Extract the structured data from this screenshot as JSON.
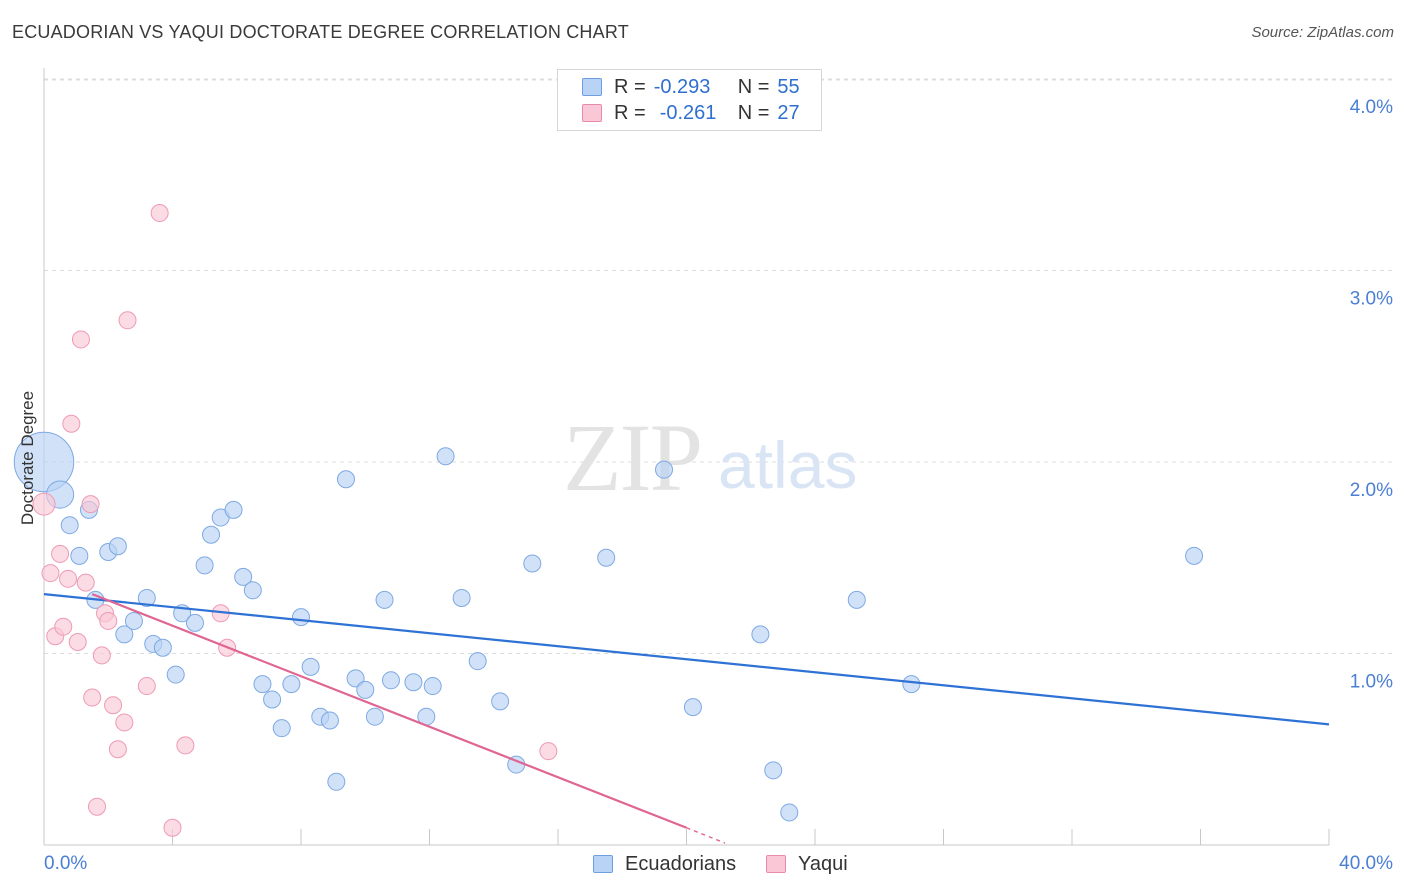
{
  "title": "ECUADORIAN VS YAQUI DOCTORATE DEGREE CORRELATION CHART",
  "source": "Source: ZipAtlas.com",
  "watermark": {
    "zip": "ZIP",
    "atlas": "atlas"
  },
  "legend": {
    "series1": {
      "r_label": "R =",
      "r_value": "-0.293",
      "n_label": "N =",
      "n_value": "55"
    },
    "series2": {
      "r_label": "R =",
      "r_value": "-0.261",
      "n_label": "N =",
      "n_value": "27"
    }
  },
  "bottom_legend": {
    "series1": "Ecuadorians",
    "series2": "Yaqui"
  },
  "colors": {
    "blue_fill": "#b8d3f5",
    "blue_stroke": "#7ea9e3",
    "blue_line": "#2f72d6",
    "pink_fill": "#f9c7d6",
    "pink_stroke": "#ee9ab6",
    "pink_line": "#e06592",
    "tick_label": "#4a7fd4",
    "grid": "#dddddd"
  },
  "chart_data": {
    "type": "scatter",
    "title": "ECUADORIAN VS YAQUI DOCTORATE DEGREE CORRELATION CHART",
    "xlabel": "",
    "ylabel": "Doctorate Degree",
    "xlim": [
      0,
      40
    ],
    "ylim": [
      0,
      4.1
    ],
    "x_tick_labels": [
      "0.0%",
      "40.0%"
    ],
    "y_ticks": [
      1,
      2,
      3,
      4
    ],
    "y_tick_labels": [
      "1.0%",
      "2.0%",
      "3.0%",
      "4.0%"
    ],
    "grid": true,
    "legend_position": "top-center",
    "series": [
      {
        "name": "Ecuadorians",
        "r": -0.293,
        "n": 55,
        "trend": {
          "x": [
            0,
            40
          ],
          "y": [
            1.31,
            0.63
          ]
        },
        "points": [
          {
            "x": 0.0,
            "y": 2.0,
            "size": 3.5
          },
          {
            "x": 0.5,
            "y": 1.83,
            "size": 1.6
          },
          {
            "x": 0.8,
            "y": 1.67,
            "size": 1
          },
          {
            "x": 1.1,
            "y": 1.51,
            "size": 1
          },
          {
            "x": 1.4,
            "y": 1.75,
            "size": 1
          },
          {
            "x": 1.6,
            "y": 1.28,
            "size": 1
          },
          {
            "x": 2.0,
            "y": 1.53,
            "size": 1
          },
          {
            "x": 2.3,
            "y": 1.56,
            "size": 1
          },
          {
            "x": 2.5,
            "y": 1.1,
            "size": 1
          },
          {
            "x": 2.8,
            "y": 1.17,
            "size": 1
          },
          {
            "x": 3.2,
            "y": 1.29,
            "size": 1
          },
          {
            "x": 3.4,
            "y": 1.05,
            "size": 1
          },
          {
            "x": 3.7,
            "y": 1.03,
            "size": 1
          },
          {
            "x": 4.1,
            "y": 0.89,
            "size": 1
          },
          {
            "x": 4.3,
            "y": 1.21,
            "size": 1
          },
          {
            "x": 4.7,
            "y": 1.16,
            "size": 1
          },
          {
            "x": 5.0,
            "y": 1.46,
            "size": 1
          },
          {
            "x": 5.2,
            "y": 1.62,
            "size": 1
          },
          {
            "x": 5.5,
            "y": 1.71,
            "size": 1
          },
          {
            "x": 5.9,
            "y": 1.75,
            "size": 1
          },
          {
            "x": 6.2,
            "y": 1.4,
            "size": 1
          },
          {
            "x": 6.5,
            "y": 1.33,
            "size": 1
          },
          {
            "x": 6.8,
            "y": 0.84,
            "size": 1
          },
          {
            "x": 7.1,
            "y": 0.76,
            "size": 1
          },
          {
            "x": 7.4,
            "y": 0.61,
            "size": 1
          },
          {
            "x": 7.7,
            "y": 0.84,
            "size": 1
          },
          {
            "x": 8.0,
            "y": 1.19,
            "size": 1
          },
          {
            "x": 8.3,
            "y": 0.93,
            "size": 1
          },
          {
            "x": 8.6,
            "y": 0.67,
            "size": 1
          },
          {
            "x": 8.9,
            "y": 0.65,
            "size": 1
          },
          {
            "x": 9.1,
            "y": 0.33,
            "size": 1
          },
          {
            "x": 9.4,
            "y": 1.91,
            "size": 1
          },
          {
            "x": 9.7,
            "y": 0.87,
            "size": 1
          },
          {
            "x": 10.0,
            "y": 0.81,
            "size": 1
          },
          {
            "x": 10.3,
            "y": 0.67,
            "size": 1
          },
          {
            "x": 10.6,
            "y": 1.28,
            "size": 1
          },
          {
            "x": 10.8,
            "y": 0.86,
            "size": 1
          },
          {
            "x": 11.5,
            "y": 0.85,
            "size": 1
          },
          {
            "x": 11.9,
            "y": 0.67,
            "size": 1
          },
          {
            "x": 12.1,
            "y": 0.83,
            "size": 1
          },
          {
            "x": 12.5,
            "y": 2.03,
            "size": 1
          },
          {
            "x": 13.0,
            "y": 1.29,
            "size": 1
          },
          {
            "x": 13.5,
            "y": 0.96,
            "size": 1
          },
          {
            "x": 14.2,
            "y": 0.75,
            "size": 1
          },
          {
            "x": 14.7,
            "y": 0.42,
            "size": 1
          },
          {
            "x": 15.2,
            "y": 1.47,
            "size": 1
          },
          {
            "x": 17.5,
            "y": 1.5,
            "size": 1
          },
          {
            "x": 19.3,
            "y": 1.96,
            "size": 1
          },
          {
            "x": 20.2,
            "y": 0.72,
            "size": 1
          },
          {
            "x": 22.3,
            "y": 1.1,
            "size": 1
          },
          {
            "x": 22.7,
            "y": 0.39,
            "size": 1
          },
          {
            "x": 23.2,
            "y": 0.17,
            "size": 1
          },
          {
            "x": 25.3,
            "y": 1.28,
            "size": 1
          },
          {
            "x": 27.0,
            "y": 0.84,
            "size": 1
          },
          {
            "x": 35.8,
            "y": 1.51,
            "size": 1
          }
        ]
      },
      {
        "name": "Yaqui",
        "r": -0.261,
        "n": 27,
        "trend": {
          "x": [
            1.5,
            20.0
          ],
          "y": [
            1.31,
            0.09
          ]
        },
        "trend_dashed_extension": {
          "x": [
            20.0,
            21.2
          ],
          "y": [
            0.09,
            0.01
          ]
        },
        "points": [
          {
            "x": 0.0,
            "y": 1.78,
            "size": 1.3
          },
          {
            "x": 0.2,
            "y": 1.42,
            "size": 1
          },
          {
            "x": 0.35,
            "y": 1.09,
            "size": 1
          },
          {
            "x": 0.5,
            "y": 1.52,
            "size": 1
          },
          {
            "x": 0.6,
            "y": 1.14,
            "size": 1
          },
          {
            "x": 0.75,
            "y": 1.39,
            "size": 1
          },
          {
            "x": 0.85,
            "y": 2.2,
            "size": 1
          },
          {
            "x": 1.05,
            "y": 1.06,
            "size": 1
          },
          {
            "x": 1.15,
            "y": 2.64,
            "size": 1
          },
          {
            "x": 1.3,
            "y": 1.37,
            "size": 1
          },
          {
            "x": 1.45,
            "y": 1.78,
            "size": 1
          },
          {
            "x": 1.5,
            "y": 0.77,
            "size": 1
          },
          {
            "x": 1.65,
            "y": 0.2,
            "size": 1
          },
          {
            "x": 1.8,
            "y": 0.99,
            "size": 1
          },
          {
            "x": 1.9,
            "y": 1.21,
            "size": 1
          },
          {
            "x": 2.0,
            "y": 1.17,
            "size": 1
          },
          {
            "x": 2.15,
            "y": 0.73,
            "size": 1
          },
          {
            "x": 2.3,
            "y": 0.5,
            "size": 1
          },
          {
            "x": 2.5,
            "y": 0.64,
            "size": 1
          },
          {
            "x": 2.6,
            "y": 2.74,
            "size": 1
          },
          {
            "x": 3.2,
            "y": 0.83,
            "size": 1
          },
          {
            "x": 3.6,
            "y": 3.3,
            "size": 1
          },
          {
            "x": 4.0,
            "y": 0.09,
            "size": 1
          },
          {
            "x": 4.4,
            "y": 0.52,
            "size": 1
          },
          {
            "x": 5.5,
            "y": 1.21,
            "size": 1
          },
          {
            "x": 5.7,
            "y": 1.03,
            "size": 1
          },
          {
            "x": 15.7,
            "y": 0.49,
            "size": 1
          }
        ]
      }
    ]
  }
}
